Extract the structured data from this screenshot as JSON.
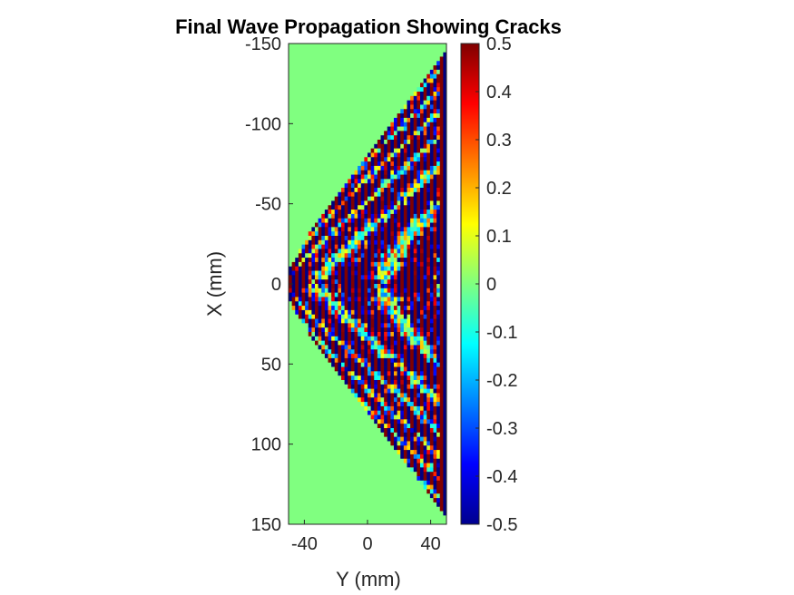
{
  "chart_data": {
    "type": "heatmap",
    "title": "Final Wave Propagation Showing Cracks",
    "xlabel": "Y (mm)",
    "ylabel": "X (mm)",
    "xlim": [
      -50,
      50
    ],
    "ylim": [
      -150,
      150
    ],
    "y_reversed": true,
    "x_ticks": [
      -40,
      0,
      40
    ],
    "x_tick_labels": [
      "-40",
      "0",
      "40"
    ],
    "y_ticks": [
      -150,
      -100,
      -50,
      0,
      50,
      100,
      150
    ],
    "y_tick_labels": [
      "-150",
      "-100",
      "-50",
      "0",
      "50",
      "100",
      "150"
    ],
    "colormap": "jet",
    "clim": [
      -0.5,
      0.5
    ],
    "colorbar_ticks": [
      0.5,
      0.4,
      0.3,
      0.2,
      0.1,
      0,
      -0.1,
      -0.2,
      -0.3,
      -0.4,
      -0.5
    ],
    "colorbar_tick_labels": [
      "0.5",
      "0.4",
      "0.3",
      "0.2",
      "0.1",
      "0",
      "-0.1",
      "-0.2",
      "-0.3",
      "-0.4",
      "-0.5"
    ],
    "grid": false,
    "source_y": -50,
    "source_x": 0,
    "crack_rows_x": [
      -90,
      -50,
      0,
      50,
      90,
      120
    ],
    "grid_cols": 48,
    "grid_rows": 110
  }
}
